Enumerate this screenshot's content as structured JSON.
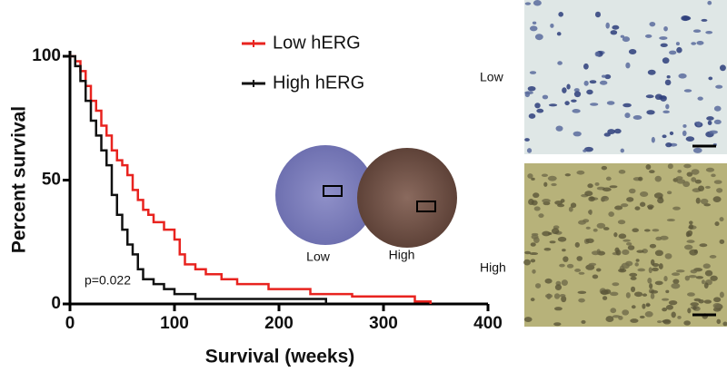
{
  "chart_data": {
    "type": "line",
    "step": "post",
    "xlabel": "Survival (weeks)",
    "ylabel": "Percent survival",
    "xlim": [
      0,
      400
    ],
    "xticks": [
      0,
      100,
      200,
      300,
      400
    ],
    "ylim": [
      0,
      100
    ],
    "yticks": [
      0,
      50,
      100
    ],
    "legend": "top-right",
    "annotation": "p=0.022",
    "tma_labels": [
      "Low",
      "High"
    ],
    "panel_labels": [
      "Low",
      "High"
    ],
    "series": [
      {
        "name": "Low hERG",
        "color": "#e8231f",
        "x": [
          0,
          5,
          10,
          15,
          20,
          25,
          30,
          35,
          40,
          45,
          50,
          55,
          60,
          65,
          70,
          75,
          80,
          90,
          100,
          105,
          110,
          120,
          130,
          145,
          160,
          190,
          230,
          270,
          330,
          345
        ],
        "values": [
          100,
          98,
          94,
          88,
          82,
          78,
          72,
          68,
          62,
          58,
          56,
          52,
          46,
          42,
          38,
          36,
          33,
          30,
          26,
          20,
          16,
          14,
          12,
          10,
          8,
          6,
          4,
          3,
          1,
          0
        ]
      },
      {
        "name": "High hERG",
        "color": "#111111",
        "x": [
          0,
          5,
          10,
          15,
          20,
          25,
          30,
          35,
          40,
          45,
          50,
          55,
          60,
          65,
          70,
          80,
          90,
          100,
          120,
          245
        ],
        "values": [
          100,
          96,
          90,
          82,
          74,
          68,
          62,
          56,
          44,
          36,
          30,
          24,
          20,
          14,
          10,
          8,
          6,
          4,
          2,
          0
        ]
      }
    ]
  }
}
